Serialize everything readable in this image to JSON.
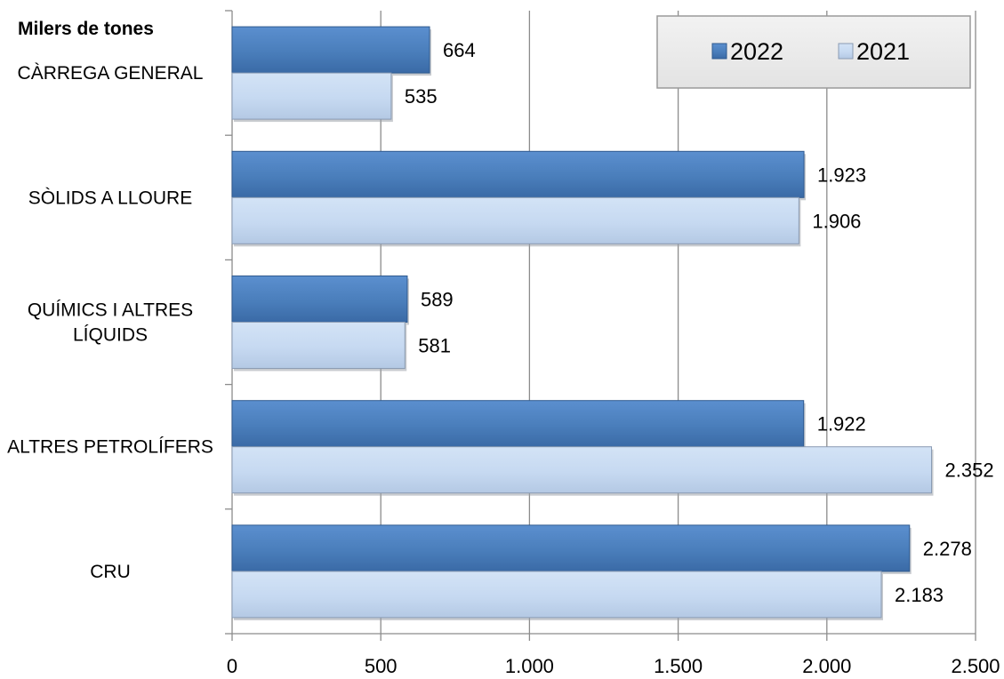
{
  "chart_data": {
    "type": "bar",
    "orientation": "horizontal",
    "unit_label": "Milers de tones",
    "categories": [
      [
        "CÀRREGA GENERAL"
      ],
      [
        "SÒLIDS A LLOURE"
      ],
      [
        "QUÍMICS I ALTRES",
        "LÍQUIDS"
      ],
      [
        "ALTRES PETROLÍFERS"
      ],
      [
        "CRU"
      ]
    ],
    "series": [
      {
        "name": "2022",
        "color": "#4a7ebb",
        "values": [
          664,
          1923,
          589,
          1922,
          2278
        ],
        "labels": [
          "664",
          "1.923",
          "589",
          "1.922",
          "2.278"
        ]
      },
      {
        "name": "2021",
        "color": "#c6d9f1",
        "values": [
          535,
          1906,
          581,
          2352,
          2183
        ],
        "labels": [
          "535",
          "1.906",
          "581",
          "2.352",
          "2.183"
        ]
      }
    ],
    "xlim": [
      0,
      2500
    ],
    "ticks": [
      0,
      500,
      1000,
      1500,
      2000,
      2500
    ],
    "tick_labels": [
      "0",
      "500",
      "1.000",
      "1.500",
      "2.000",
      "2.500"
    ],
    "grid": true,
    "legend_position": "top-right"
  }
}
